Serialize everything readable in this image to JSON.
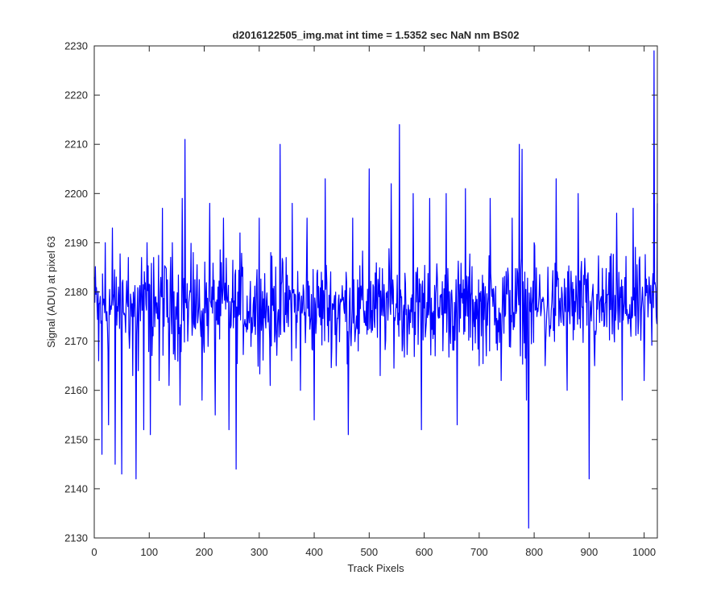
{
  "chart_data": {
    "type": "line",
    "title": "d2016122505_img.mat int time = 1.5352 sec  NaN nm BS02",
    "xlabel": "Track Pixels",
    "ylabel": "Signal (ADU) at pixel 63",
    "xlim": [
      0,
      1024
    ],
    "ylim": [
      2130,
      2230
    ],
    "xticks": [
      0,
      100,
      200,
      300,
      400,
      500,
      600,
      700,
      800,
      900,
      1000
    ],
    "yticks": [
      2130,
      2140,
      2150,
      2160,
      2170,
      2180,
      2190,
      2200,
      2210,
      2220,
      2230
    ],
    "grid": false,
    "legend": "none",
    "series_color": "#0000ff",
    "baseline": 2177,
    "noise_amplitude": 9,
    "series": [
      {
        "x": [
          0,
          8,
          14,
          20,
          26,
          33,
          38,
          44,
          50,
          56,
          62,
          70,
          76,
          80,
          86,
          90,
          96,
          102,
          108,
          112,
          118,
          124,
          130,
          136,
          142,
          148,
          156,
          160,
          165,
          170,
          180,
          196,
          210,
          220,
          235,
          245,
          258,
          265,
          280,
          300,
          320,
          338,
          345,
          360,
          375,
          387,
          400,
          420,
          440,
          462,
          470,
          480,
          500,
          520,
          540,
          555,
          560,
          580,
          595,
          610,
          620,
          640,
          660,
          675,
          700,
          720,
          740,
          760,
          773,
          775,
          778,
          786,
          790,
          800,
          820,
          840,
          860,
          880,
          900,
          910,
          930,
          950,
          960,
          980,
          1000,
          1015,
          1018,
          1022,
          1024
        ],
        "y": [
          2183,
          2166,
          2147,
          2190,
          2153,
          2193,
          2145,
          2181,
          2143,
          2175,
          2187,
          2163,
          2142,
          2164,
          2187,
          2152,
          2190,
          2151,
          2187,
          2179,
          2162,
          2197,
          2185,
          2161,
          2190,
          2177,
          2157,
          2199,
          2211,
          2170,
          2188,
          2158,
          2198,
          2155,
          2195,
          2152,
          2144,
          2192,
          2176,
          2195,
          2161,
          2210,
          2172,
          2198,
          2160,
          2195,
          2154,
          2203,
          2165,
          2151,
          2195,
          2168,
          2205,
          2163,
          2202,
          2214,
          2168,
          2200,
          2152,
          2199,
          2167,
          2200,
          2153,
          2201,
          2165,
          2199,
          2162,
          2195,
          2210,
          2167,
          2209,
          2158,
          2132,
          2190,
          2165,
          2203,
          2160,
          2200,
          2142,
          2165,
          2178,
          2196,
          2158,
          2197,
          2162,
          2181,
          2229,
          2175,
          2198
        ]
      }
    ]
  }
}
